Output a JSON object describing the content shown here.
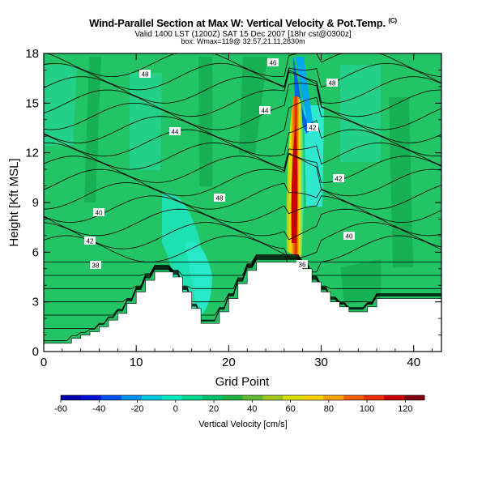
{
  "header": {
    "title": "Wind-Parallel Section at Max W: Vertical Velocity & Pot.Temp.",
    "title_mark": "(C)",
    "valid_line": "Valid 1400 LST (1200Z) SAT 15 Dec 2007 [18hr cst@0300z]",
    "sub_line": "box: Wmax=119@ 32.57,21.11,2830m"
  },
  "chart_data": {
    "type": "heatmap",
    "title": "Wind-Parallel Section at Max W: Vertical Velocity & Pot.Temp.",
    "xlabel": "Grid Point",
    "ylabel": "Height [Kft MSL]",
    "xlim": [
      0,
      43
    ],
    "ylim": [
      0,
      18
    ],
    "xticks": [
      0,
      10,
      20,
      30,
      40
    ],
    "yticks": [
      0,
      3,
      6,
      9,
      12,
      15,
      18
    ],
    "colorbar": {
      "label": "Vertical Velocity [cm/s]",
      "ticks": [
        -60,
        -40,
        -20,
        0,
        20,
        40,
        60,
        80,
        100,
        120
      ],
      "range": [
        -60,
        130
      ],
      "colors": [
        "#0000aa",
        "#0010d0",
        "#0050f0",
        "#0090f0",
        "#00c8e0",
        "#00e8c0",
        "#00d890",
        "#00c070",
        "#20b040",
        "#60b830",
        "#a0c820",
        "#d8e000",
        "#f8d000",
        "#f8a000",
        "#f06000",
        "#e83000",
        "#c80000",
        "#800010"
      ]
    },
    "terrain": {
      "x": [
        0,
        2,
        3,
        4,
        5,
        6,
        7,
        8,
        9,
        10,
        11,
        12,
        13,
        14,
        15,
        16,
        17,
        18,
        19,
        20,
        21,
        22,
        23,
        24,
        25,
        26,
        27,
        28,
        29,
        30,
        31,
        32,
        33,
        34,
        35,
        36,
        37,
        38,
        39,
        40,
        41,
        42,
        43
      ],
      "height_kft": [
        0.5,
        0.5,
        0.8,
        1.0,
        1.2,
        1.5,
        1.9,
        2.3,
        2.9,
        3.6,
        4.3,
        4.8,
        4.8,
        4.5,
        3.6,
        2.6,
        1.7,
        1.7,
        2.4,
        3.2,
        4.1,
        4.9,
        5.4,
        5.4,
        5.4,
        5.4,
        5.4,
        5.0,
        4.2,
        3.6,
        3.0,
        2.7,
        2.4,
        2.4,
        2.7,
        3.2,
        3.2,
        3.2,
        3.2,
        3.2,
        3.2,
        3.2,
        3.2
      ]
    },
    "theta_labels": [
      "48",
      "44",
      "46",
      "44",
      "48",
      "42",
      "48",
      "42",
      "40",
      "42",
      "40",
      "38",
      "36"
    ],
    "updraft": {
      "x": 27,
      "height_kft": 9,
      "w_max": 119
    }
  }
}
